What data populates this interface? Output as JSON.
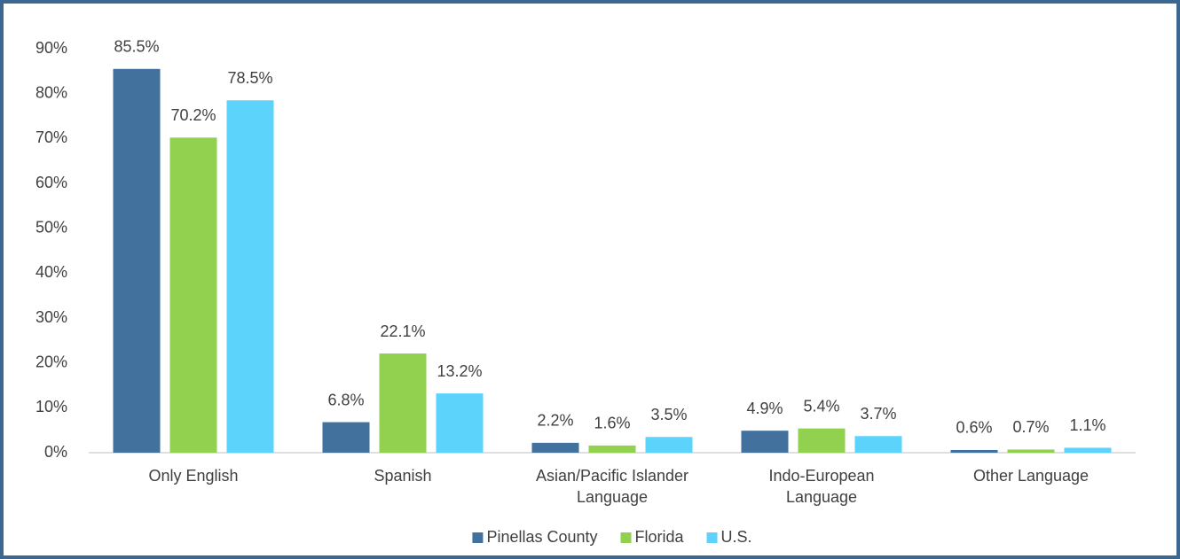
{
  "chart_data": {
    "type": "bar",
    "categories": [
      "Only English",
      "Spanish",
      "Asian/Pacific Islander\nLanguage",
      "Indo-European\nLanguage",
      "Other Language"
    ],
    "series": [
      {
        "name": "Pinellas County",
        "color": "#41719c",
        "values": [
          85.5,
          6.8,
          2.2,
          4.9,
          0.6
        ],
        "value_labels": [
          "85.5%",
          "6.8%",
          "2.2%",
          "4.9%",
          "0.6%"
        ]
      },
      {
        "name": "Florida",
        "color": "#92d050",
        "values": [
          70.2,
          22.1,
          1.6,
          5.4,
          0.7
        ],
        "value_labels": [
          "70.2%",
          "22.1%",
          "1.6%",
          "5.4%",
          "0.7%"
        ]
      },
      {
        "name": "U.S.",
        "color": "#5bd3fb",
        "values": [
          78.5,
          13.2,
          3.5,
          3.7,
          1.1
        ],
        "value_labels": [
          "78.5%",
          "13.2%",
          "3.5%",
          "3.7%",
          "1.1%"
        ]
      }
    ],
    "ylim": [
      0,
      90
    ],
    "yticks": [
      {
        "value": 0,
        "label": "0%"
      },
      {
        "value": 10,
        "label": "10%"
      },
      {
        "value": 20,
        "label": "20%"
      },
      {
        "value": 30,
        "label": "30%"
      },
      {
        "value": 40,
        "label": "40%"
      },
      {
        "value": 50,
        "label": "50%"
      },
      {
        "value": 60,
        "label": "60%"
      },
      {
        "value": 70,
        "label": "70%"
      },
      {
        "value": 80,
        "label": "80%"
      },
      {
        "value": 90,
        "label": "90%"
      }
    ],
    "grid": false,
    "legend": "bottom"
  }
}
